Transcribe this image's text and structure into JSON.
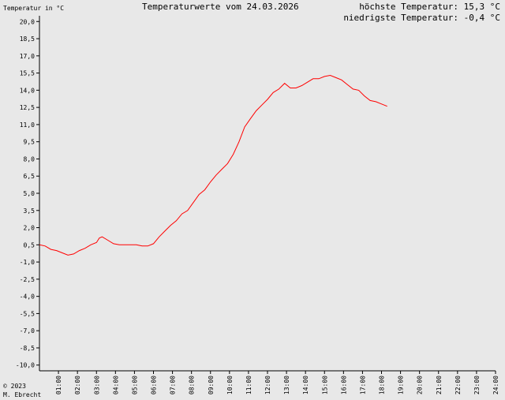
{
  "header": {
    "ylabel": "Temperatur in °C",
    "title": "Temperaturwerte vom 24.03.2026",
    "max_text": "höchste Temperatur: 15,3 °C",
    "min_text": "niedrigste Temperatur: -0,4 °C",
    "copyright_line1": "© 2023",
    "copyright_line2": "M. Ebrecht"
  },
  "colors": {
    "line": "#ff0000",
    "axis": "#000000",
    "background": "#e8e8e8"
  },
  "chart_data": {
    "type": "line",
    "title": "Temperaturwerte vom 24.03.2026",
    "ylabel": "Temperatur in °C",
    "xlabel": "",
    "xlim": [
      0,
      24
    ],
    "ylim": [
      -10.5,
      20.5
    ],
    "y_ticks": [
      -10,
      -8.5,
      -7,
      -5.5,
      -4,
      -2.5,
      -1,
      0.5,
      2,
      3.5,
      5,
      6.5,
      8,
      9.5,
      11,
      12.5,
      14,
      15.5,
      17,
      18.5,
      20
    ],
    "y_tick_labels": [
      "-10,0",
      "-8,5",
      "-7,0",
      "-5,5",
      "-4,0",
      "-2,5",
      "-1,0",
      "0,5",
      "2,0",
      "3,5",
      "5,0",
      "6,5",
      "8,0",
      "9,5",
      "11,0",
      "12,5",
      "14,0",
      "15,5",
      "17,0",
      "18,5",
      "20,0"
    ],
    "x_ticks": [
      1,
      2,
      3,
      4,
      5,
      6,
      7,
      8,
      9,
      10,
      11,
      12,
      13,
      14,
      15,
      16,
      17,
      18,
      19,
      20,
      21,
      22,
      23,
      24
    ],
    "x_tick_labels": [
      "01:00",
      "02:00",
      "03:00",
      "04:00",
      "05:00",
      "06:00",
      "07:00",
      "08:00",
      "09:00",
      "10:00",
      "11:00",
      "12:00",
      "13:00",
      "14:00",
      "15:00",
      "16:00",
      "17:00",
      "18:00",
      "19:00",
      "20:00",
      "21:00",
      "22:00",
      "23:00",
      "24:00"
    ],
    "grid": false,
    "series": [
      {
        "x": [
          0.0,
          0.3,
          0.6,
          0.9,
          1.2,
          1.5,
          1.8,
          2.1,
          2.4,
          2.7,
          3.0,
          3.15,
          3.3,
          3.6,
          3.9,
          4.2,
          4.5,
          4.8,
          5.1,
          5.4,
          5.7,
          6.0,
          6.3,
          6.6,
          6.9,
          7.2,
          7.5,
          7.8,
          8.1,
          8.4,
          8.7,
          9.0,
          9.3,
          9.6,
          9.9,
          10.2,
          10.5,
          10.8,
          11.1,
          11.4,
          11.7,
          12.0,
          12.3,
          12.6,
          12.9,
          13.2,
          13.5,
          13.8,
          14.1,
          14.4,
          14.7,
          15.0,
          15.3,
          15.6,
          15.9,
          16.2,
          16.5,
          16.8,
          17.1,
          17.4,
          17.7,
          18.0,
          18.3
        ],
        "y": [
          0.5,
          0.4,
          0.1,
          0.0,
          -0.2,
          -0.4,
          -0.3,
          0.0,
          0.2,
          0.5,
          0.7,
          1.1,
          1.2,
          0.9,
          0.6,
          0.5,
          0.5,
          0.5,
          0.5,
          0.4,
          0.4,
          0.6,
          1.2,
          1.7,
          2.2,
          2.6,
          3.2,
          3.5,
          4.2,
          4.9,
          5.3,
          6.0,
          6.6,
          7.1,
          7.6,
          8.4,
          9.5,
          10.8,
          11.5,
          12.2,
          12.7,
          13.2,
          13.8,
          14.1,
          14.6,
          14.2,
          14.2,
          14.4,
          14.7,
          15.0,
          15.0,
          15.2,
          15.3,
          15.1,
          14.9,
          14.5,
          14.1,
          14.0,
          13.5,
          13.1,
          13.0,
          12.8,
          12.6
        ]
      }
    ]
  }
}
